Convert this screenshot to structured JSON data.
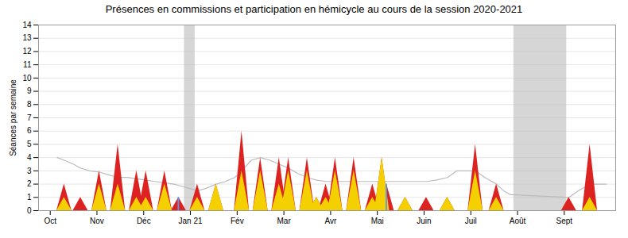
{
  "chart_data": {
    "type": "area",
    "title": "Présences en commissions et participation en hémicycle au cours de la session 2020-2021",
    "y_label": "Séances par semaine",
    "xlim": [
      -0.25,
      12.1
    ],
    "xticks": [
      {
        "value": 0,
        "label": "Oct"
      },
      {
        "value": 1,
        "label": "Nov"
      },
      {
        "value": 2,
        "label": "Déc"
      },
      {
        "value": 3,
        "label": "Jan 21"
      },
      {
        "value": 4,
        "label": "Fév"
      },
      {
        "value": 5,
        "label": "Mar"
      },
      {
        "value": 6,
        "label": "Avr"
      },
      {
        "value": 7,
        "label": "Mai"
      },
      {
        "value": 8,
        "label": "Juin"
      },
      {
        "value": 9,
        "label": "Juil"
      },
      {
        "value": 10,
        "label": "Août"
      },
      {
        "value": 11,
        "label": "Sept"
      }
    ],
    "ylim": [
      0,
      14
    ],
    "yticks": [
      0,
      1,
      2,
      3,
      4,
      5,
      6,
      7,
      8,
      9,
      10,
      11,
      12,
      13,
      14
    ],
    "grid": true,
    "x": [
      0.15,
      0.3,
      0.5,
      0.65,
      0.85,
      1.05,
      1.25,
      1.45,
      1.65,
      1.85,
      2.05,
      2.25,
      2.45,
      2.65,
      2.75,
      3.15,
      3.35,
      3.55,
      3.75,
      3.95,
      4.1,
      4.3,
      4.5,
      4.7,
      4.9,
      5.1,
      5.3,
      5.5,
      5.7,
      5.9,
      6.1,
      6.3,
      6.5,
      6.7,
      6.9,
      7.1,
      7.2,
      7.4,
      7.6,
      7.8,
      8.05,
      8.25,
      8.5,
      8.7,
      8.9,
      9.1,
      9.3,
      9.55,
      9.7,
      9.85,
      11.1,
      11.3,
      11.55,
      11.75,
      11.9
    ],
    "series": [
      {
        "type": "line",
        "color": "#bbbbbb",
        "values": [
          4.0,
          3.8,
          3.5,
          3.2,
          3.0,
          2.9,
          2.7,
          2.5,
          2.5,
          2.4,
          2.3,
          2.2,
          2.1,
          2.0,
          1.9,
          1.5,
          1.7,
          2.0,
          2.2,
          2.5,
          3.0,
          3.8,
          4.0,
          3.8,
          3.5,
          3.2,
          2.8,
          2.5,
          2.3,
          2.2,
          2.2,
          2.2,
          2.2,
          2.2,
          2.2,
          2.2,
          2.2,
          2.2,
          2.2,
          2.2,
          2.2,
          2.3,
          2.5,
          3.0,
          3.0,
          3.0,
          2.5,
          2.0,
          1.5,
          1.2,
          1.0,
          1.5,
          2.0,
          2.0,
          2.0
        ]
      },
      {
        "type": "area",
        "color": "#dd2222",
        "values": [
          0,
          2,
          0,
          1,
          0,
          3,
          0,
          5,
          0,
          3,
          3,
          0,
          3,
          0,
          1,
          2,
          0,
          2,
          0,
          0,
          6,
          0,
          4,
          0,
          4,
          4,
          0,
          4,
          1,
          2,
          4,
          0,
          4,
          0,
          2,
          4,
          2,
          0,
          1,
          0,
          1,
          0,
          1,
          0,
          0,
          5,
          0,
          2,
          0,
          0,
          1,
          0,
          5,
          0,
          0
        ]
      },
      {
        "type": "area",
        "color": "#f5d000",
        "values": [
          0,
          1,
          0,
          0,
          0,
          2,
          0,
          2,
          0,
          1,
          1,
          0,
          2,
          0,
          0,
          1,
          0,
          2,
          0,
          0,
          3,
          0,
          3,
          0,
          2,
          3,
          0,
          3,
          1,
          1,
          3,
          0,
          3,
          0,
          1,
          4,
          0,
          0,
          1,
          0,
          0,
          0,
          1,
          0,
          0,
          3,
          0,
          1,
          0,
          0,
          0,
          0,
          1,
          0,
          0
        ]
      },
      {
        "type": "bar",
        "color": "#5599ee",
        "values": [
          null,
          null,
          null,
          null,
          null,
          null,
          null,
          null,
          null,
          null,
          null,
          null,
          null,
          null,
          1,
          null,
          null,
          null,
          null,
          null,
          null,
          null,
          null,
          null,
          null,
          null,
          null,
          null,
          null,
          null,
          null,
          null,
          null,
          null,
          null,
          null,
          2,
          null,
          null,
          null,
          null,
          null,
          null,
          null,
          null,
          null,
          null,
          null,
          null,
          null,
          null,
          null,
          null,
          null,
          null
        ]
      }
    ],
    "shaded_regions": {
      "color": "#bbbbbb",
      "ranges": [
        [
          2.87,
          3.1
        ],
        [
          9.92,
          11.05
        ]
      ]
    }
  }
}
